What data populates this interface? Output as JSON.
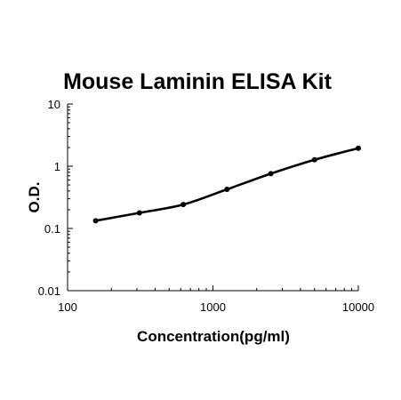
{
  "chart_data": {
    "type": "scatter",
    "title": "Mouse Laminin ELISA Kit",
    "xlabel": "Concentration(pg/ml)",
    "ylabel": "O.D.",
    "x_scale": "log",
    "y_scale": "log",
    "xlim": [
      100,
      10000
    ],
    "ylim": [
      0.01,
      10
    ],
    "x_ticks": [
      {
        "value": 100,
        "label": "100"
      },
      {
        "value": 1000,
        "label": "1000"
      },
      {
        "value": 10000,
        "label": "10000"
      }
    ],
    "y_ticks": [
      {
        "value": 0.01,
        "label": "0.01"
      },
      {
        "value": 0.1,
        "label": "0.1"
      },
      {
        "value": 1,
        "label": "1"
      },
      {
        "value": 10,
        "label": "10"
      }
    ],
    "grid": false,
    "legend": "none",
    "series": [
      {
        "x": [
          156,
          312,
          625,
          1250,
          2500,
          5000,
          10000
        ],
        "y": [
          0.133,
          0.178,
          0.242,
          0.425,
          0.76,
          1.27,
          1.95
        ]
      }
    ],
    "fit_curve": true,
    "colors": {
      "marks": "#000000",
      "axes": "#000000"
    }
  }
}
